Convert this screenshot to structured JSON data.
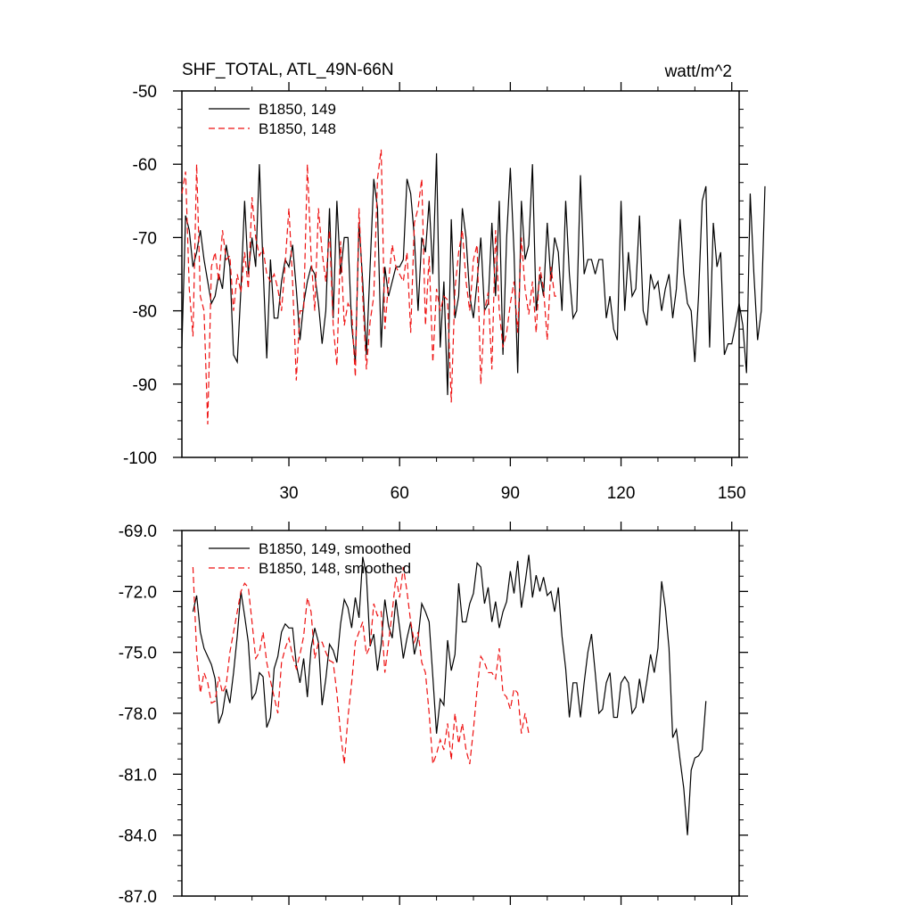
{
  "chart_data": [
    {
      "type": "line",
      "title": "SHF_TOTAL, ATL_49N-66N",
      "units": "watt/m^2",
      "xlim": [
        1,
        152
      ],
      "ylim": [
        -100,
        -50
      ],
      "x_ticks": [
        30,
        60,
        90,
        120,
        150
      ],
      "x_tick_labels": [
        "30",
        "60",
        "90",
        "120",
        "150"
      ],
      "y_ticks": [
        -100,
        -90,
        -80,
        -70,
        -60,
        -50
      ],
      "y_tick_labels": [
        "-100",
        "-90",
        "-80",
        "-70",
        "-60",
        "-50"
      ],
      "legend_position": "top-left",
      "series": [
        {
          "name": "B1850, 149",
          "color": "#000000",
          "dash": "solid",
          "x_start": 1,
          "values": [
            -85.0,
            -67.0,
            -69.0,
            -74.0,
            -72.0,
            -69.0,
            -73.0,
            -76.0,
            -79.0,
            -78.0,
            -75.0,
            -77.0,
            -71.0,
            -74.0,
            -86.0,
            -87.0,
            -77.0,
            -65.0,
            -75.0,
            -70.0,
            -74.0,
            -60.0,
            -74.0,
            -86.5,
            -73.0,
            -81.0,
            -81.0,
            -76.0,
            -73.0,
            -74.0,
            -71.0,
            -77.0,
            -84.0,
            -79.0,
            -76.0,
            -74.0,
            -75.0,
            -79.0,
            -84.5,
            -80.0,
            -66.0,
            -81.0,
            -65.0,
            -75.0,
            -70.0,
            -70.0,
            -82.0,
            -87.0,
            -68.0,
            -76.0,
            -86.0,
            -74.0,
            -62.0,
            -66.0,
            -85.0,
            -74.0,
            -78.0,
            -76.0,
            -74.0,
            -74.0,
            -73.0,
            -62.0,
            -64.0,
            -70.0,
            -80.0,
            -70.0,
            -72.0,
            -65.0,
            -75.0,
            -58.5,
            -85.0,
            -76.0,
            -91.5,
            -67.5,
            -81.0,
            -78.0,
            -66.0,
            -70.0,
            -78.0,
            -81.0,
            -76.0,
            -70.0,
            -80.0,
            -79.0,
            -68.0,
            -78.0,
            -65.0,
            -86.0,
            -70.0,
            -60.5,
            -72.0,
            -88.5,
            -65.0,
            -73.0,
            -71.0,
            -60.0,
            -80.0,
            -75.0,
            -78.0,
            -68.0,
            -76.0,
            -70.0,
            -72.0,
            -80.0,
            -65.0,
            -75.0,
            -81.0,
            -80.0,
            -61.5,
            -75.0,
            -73.0,
            -73.0,
            -75.0,
            -73.0,
            -73.0,
            -81.0,
            -78.0,
            -82.5,
            -84.0,
            -65.0,
            -80.0,
            -72.0,
            -78.0,
            -77.0,
            -67.0,
            -80.0,
            -82.0,
            -75.0,
            -77.0,
            -76.0,
            -80.0,
            -77.0,
            -75.0,
            -81.0,
            -77.0,
            -67.5,
            -75.0,
            -79.0,
            -80.0,
            -87.0,
            -78.0,
            -65.0,
            -63.0,
            -85.0,
            -68.0,
            -74.0,
            -72.0,
            -86.0,
            -84.5,
            -84.5,
            -82.0,
            -79.0,
            -82.0,
            -88.5,
            -64.0,
            -75.0,
            -84.0,
            -80.0,
            -63.0
          ]
        },
        {
          "name": "B1850, 148",
          "color": "#ee1111",
          "dash": "dashed",
          "x_start": 1,
          "values": [
            -64.0,
            -61.0,
            -77.0,
            -83.5,
            -60.0,
            -78.0,
            -80.0,
            -95.5,
            -74.0,
            -72.0,
            -76.0,
            -69.0,
            -73.0,
            -72.5,
            -80.0,
            -75.0,
            -77.5,
            -72.0,
            -77.0,
            -64.5,
            -70.0,
            -72.5,
            -71.5,
            -75.0,
            -76.0,
            -75.0,
            -77.0,
            -80.0,
            -73.5,
            -66.0,
            -76.0,
            -89.5,
            -80.0,
            -80.0,
            -60.0,
            -72.5,
            -80.0,
            -66.0,
            -72.0,
            -76.0,
            -69.0,
            -82.0,
            -87.5,
            -70.5,
            -82.0,
            -79.0,
            -80.0,
            -89.0,
            -66.0,
            -78.0,
            -88.0,
            -81.5,
            -78.0,
            -62.0,
            -58.0,
            -82.5,
            -76.0,
            -71.0,
            -74.0,
            -75.0,
            -76.0,
            -72.0,
            -83.0,
            -68.0,
            -66.0,
            -62.0,
            -82.0,
            -72.5,
            -87.0,
            -77.0,
            -80.0,
            -78.0,
            -78.5,
            -92.5,
            -77.0,
            -72.0,
            -69.0,
            -76.0,
            -80.0,
            -73.0,
            -71.0,
            -90.0,
            -80.0,
            -77.5,
            -88.0,
            -69.0,
            -80.0,
            -85.0,
            -83.0,
            -79.0,
            -76.0,
            -83.0,
            -70.0,
            -77.0,
            -80.5,
            -76.0,
            -83.0,
            -74.0,
            -77.0,
            -84.0,
            -74.0,
            -78.0,
            -78.0
          ]
        }
      ]
    },
    {
      "type": "line",
      "xlim": [
        1,
        152
      ],
      "ylim": [
        -87.0,
        -69.0
      ],
      "x_ticks": [
        30,
        60,
        90,
        120,
        150
      ],
      "y_ticks": [
        -87.0,
        -84.0,
        -81.0,
        -78.0,
        -75.0,
        -72.0,
        -69.0
      ],
      "y_tick_labels": [
        "-87.0",
        "-84.0",
        "-81.0",
        "-78.0",
        "-75.0",
        "-72.0",
        "-69.0"
      ],
      "legend_position": "top-left",
      "series": [
        {
          "name": "B1850, 149, smoothed",
          "color": "#000000",
          "dash": "solid",
          "x_start": 4,
          "values": [
            -73.0,
            -72.2,
            -74.0,
            -74.8,
            -75.2,
            -75.6,
            -76.3,
            -78.5,
            -78.0,
            -76.8,
            -77.5,
            -76.0,
            -74.2,
            -72.0,
            -73.2,
            -74.5,
            -77.3,
            -77.0,
            -76.0,
            -76.2,
            -78.7,
            -78.2,
            -75.8,
            -75.2,
            -74.0,
            -73.6,
            -73.8,
            -73.8,
            -75.6,
            -76.5,
            -75.3,
            -77.2,
            -74.8,
            -73.8,
            -74.5,
            -77.6,
            -76.3,
            -74.6,
            -74.9,
            -75.5,
            -73.6,
            -72.4,
            -72.8,
            -73.8,
            -72.3,
            -73.3,
            -70.3,
            -71.2,
            -74.7,
            -74.1,
            -75.9,
            -74.6,
            -72.4,
            -73.7,
            -74.3,
            -72.4,
            -73.8,
            -75.3,
            -74.3,
            -73.5,
            -75.1,
            -74.3,
            -72.6,
            -73.0,
            -73.5,
            -76.2,
            -79.0,
            -77.3,
            -77.6,
            -74.4,
            -75.9,
            -75.1,
            -71.6,
            -73.5,
            -73.5,
            -72.6,
            -72.1,
            -70.6,
            -70.8,
            -72.6,
            -71.8,
            -73.5,
            -72.5,
            -73.8,
            -73.0,
            -72.5,
            -71.0,
            -72.1,
            -70.5,
            -72.8,
            -71.6,
            -70.2,
            -72.3,
            -71.2,
            -72.0,
            -71.3,
            -72.2,
            -72.0,
            -73.0,
            -71.8,
            -74.2,
            -75.8,
            -78.2,
            -76.5,
            -76.5,
            -78.2,
            -76.5,
            -75.0,
            -74.1,
            -76.0,
            -78.0,
            -77.8,
            -76.5,
            -76.0,
            -78.2,
            -78.2,
            -76.5,
            -76.2,
            -76.5,
            -78.0,
            -77.7,
            -76.3,
            -77.5,
            -76.4,
            -75.1,
            -76.0,
            -74.8,
            -71.5,
            -72.8,
            -74.8,
            -79.2,
            -78.8,
            -80.3,
            -81.7,
            -84.0,
            -80.8,
            -80.2,
            -80.1,
            -79.8,
            -77.4
          ]
        },
        {
          "name": "B1850, 148, smoothed",
          "color": "#ee1111",
          "dash": "dashed",
          "x_start": 4,
          "values": [
            -70.8,
            -75.0,
            -77.0,
            -76.0,
            -76.5,
            -77.5,
            -77.4,
            -76.2,
            -77.0,
            -76.6,
            -75.0,
            -74.0,
            -73.0,
            -72.0,
            -71.6,
            -71.8,
            -73.5,
            -75.3,
            -75.0,
            -74.0,
            -75.5,
            -76.4,
            -77.2,
            -78.0,
            -75.5,
            -74.8,
            -74.3,
            -75.2,
            -75.8,
            -75.1,
            -74.2,
            -72.3,
            -73.0,
            -75.3,
            -74.5,
            -74.5,
            -75.0,
            -75.4,
            -75.5,
            -77.0,
            -79.0,
            -80.5,
            -78.2,
            -76.5,
            -74.5,
            -74.0,
            -73.5,
            -75.1,
            -74.7,
            -72.6,
            -73.2,
            -73.0,
            -76.0,
            -74.5,
            -73.0,
            -71.3,
            -72.3,
            -70.8,
            -72.0,
            -73.5,
            -74.5,
            -74.0,
            -75.5,
            -76.0,
            -78.0,
            -80.5,
            -80.0,
            -79.3,
            -79.8,
            -78.5,
            -80.3,
            -78.0,
            -79.5,
            -78.5,
            -79.8,
            -80.5,
            -78.8,
            -76.8,
            -75.2,
            -75.5,
            -76.0,
            -76.0,
            -76.3,
            -74.8,
            -77.0,
            -77.2,
            -77.8,
            -76.8,
            -77.0,
            -79.0,
            -78.0,
            -79.0
          ]
        }
      ]
    }
  ]
}
